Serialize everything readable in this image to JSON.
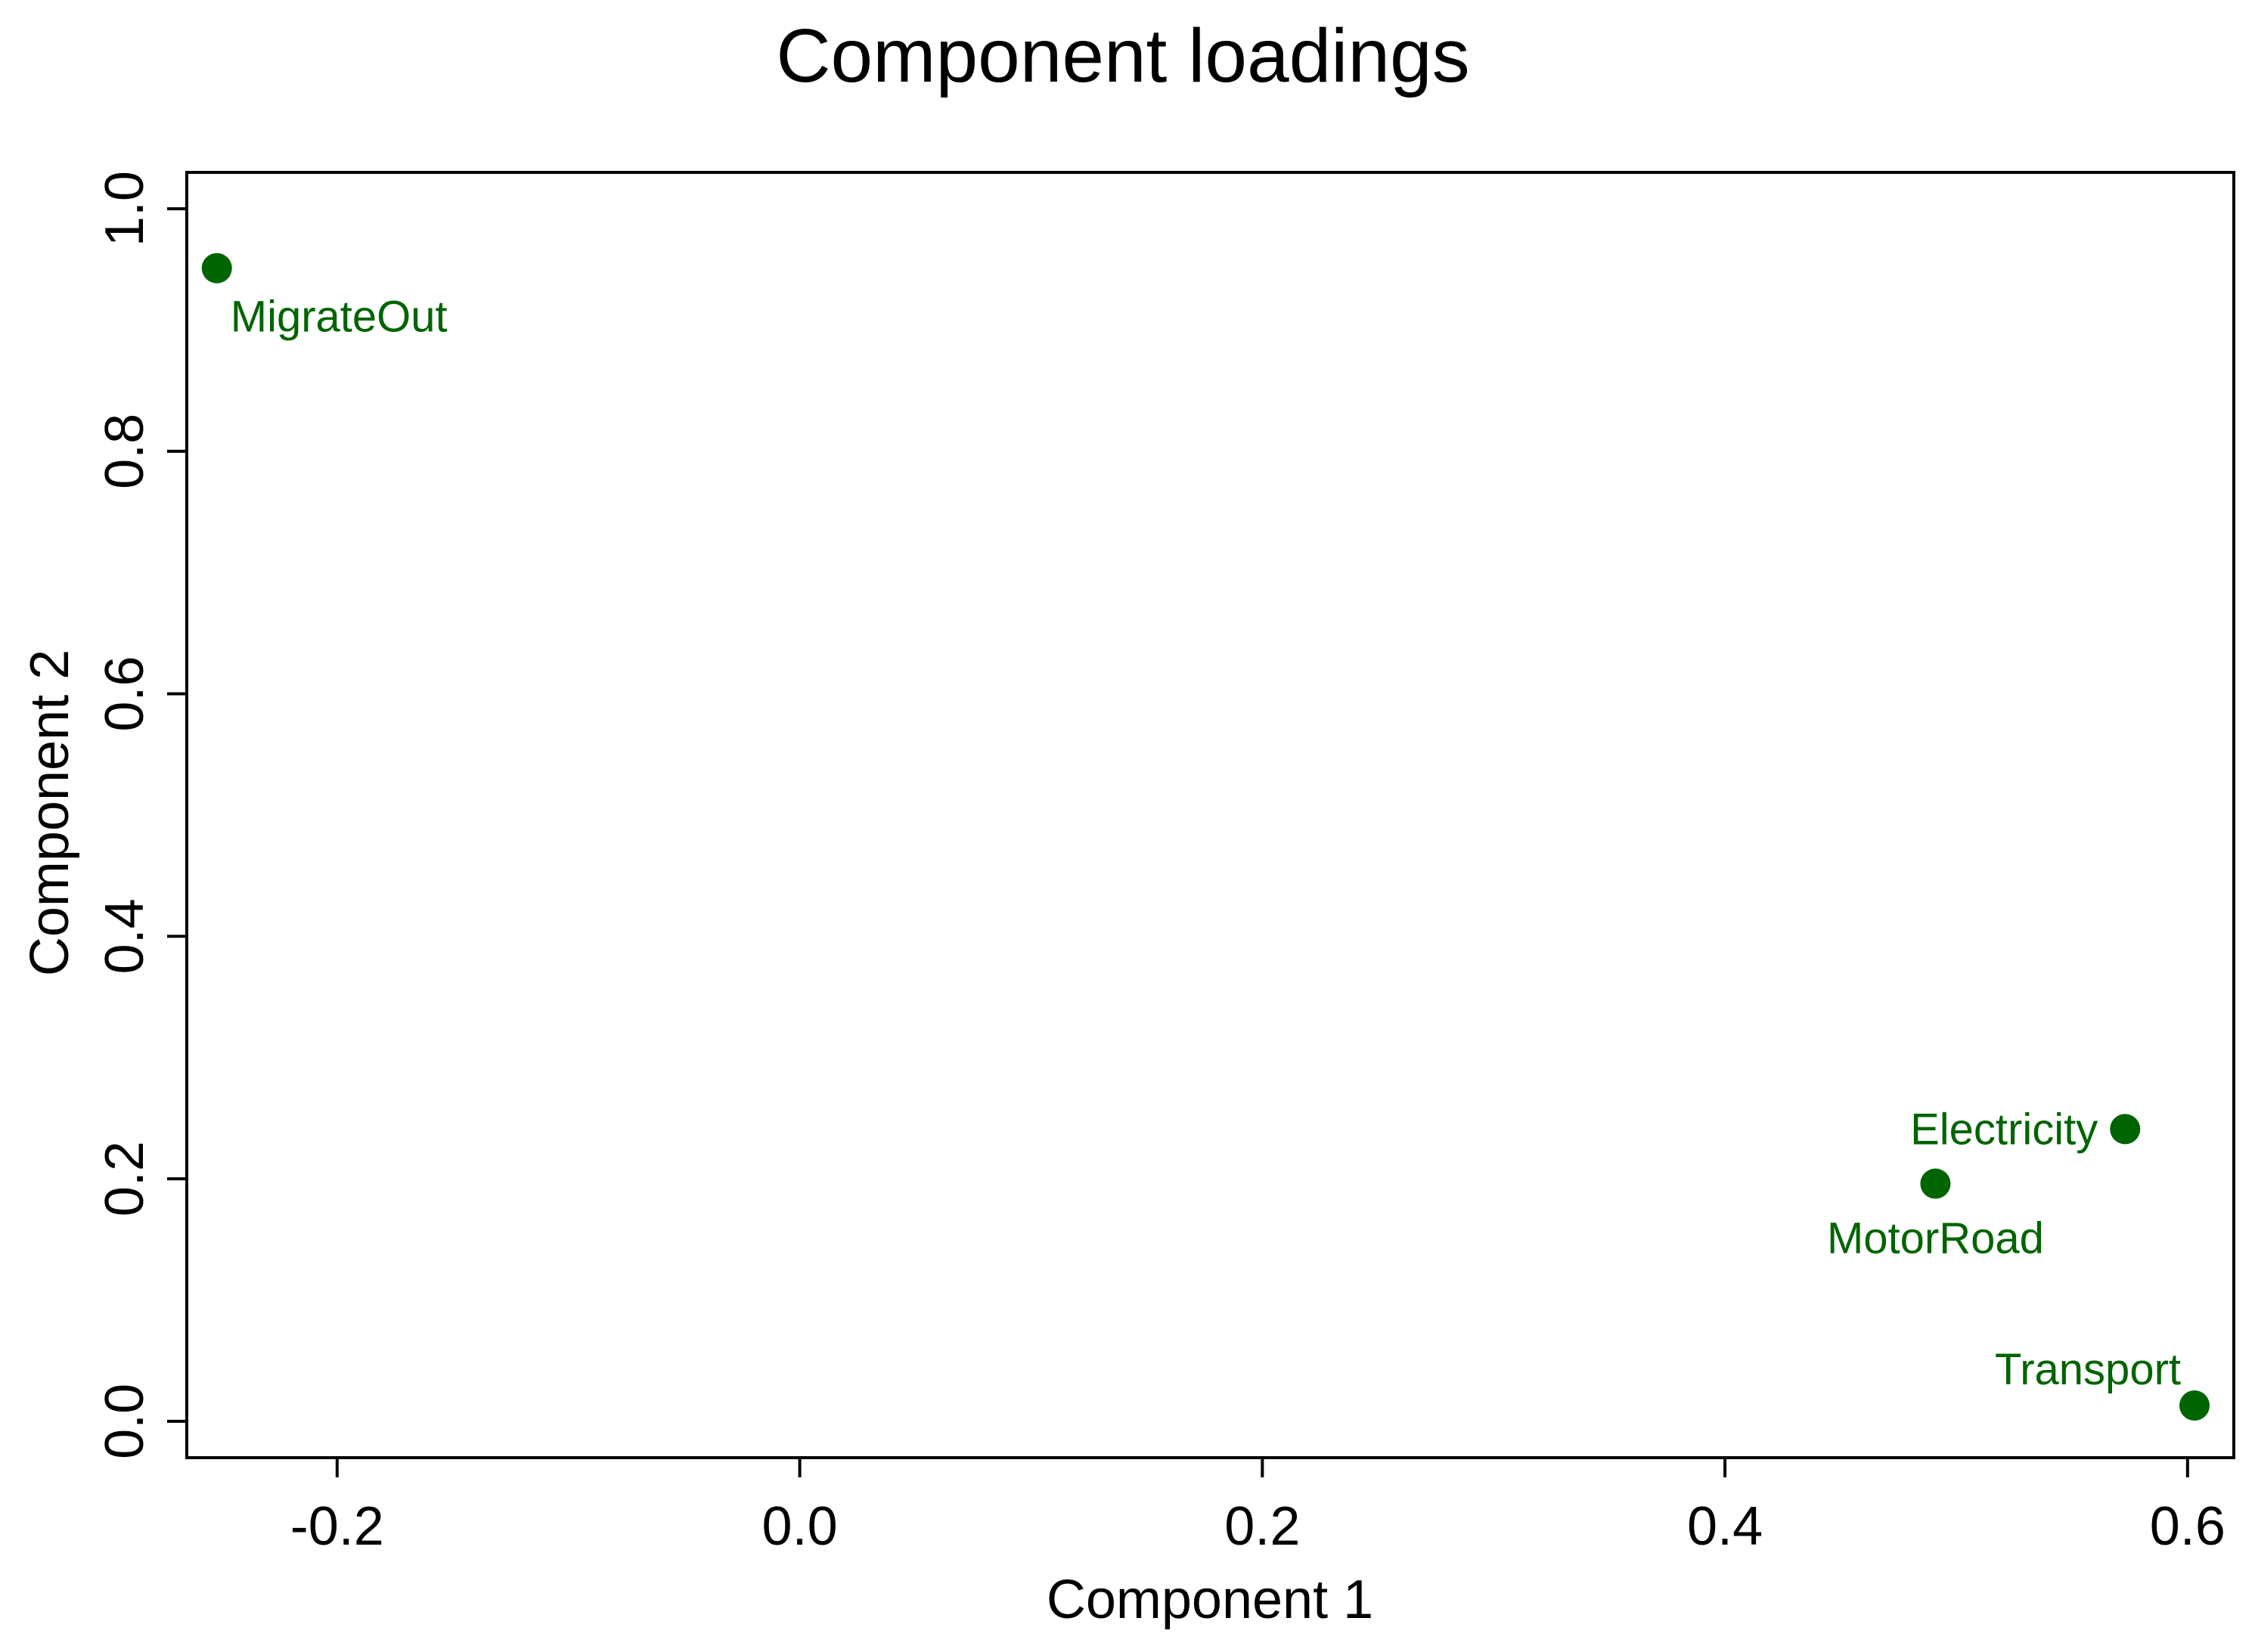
{
  "chart_data": {
    "type": "scatter",
    "title": "Component loadings",
    "xlabel": "Component 1",
    "ylabel": "Component 2",
    "xlim": [
      -0.265,
      0.62
    ],
    "ylim": [
      -0.03,
      1.03
    ],
    "xticks": [
      -0.2,
      0.0,
      0.2,
      0.4,
      0.6
    ],
    "xtick_labels": [
      "-0.2",
      "0.0",
      "0.2",
      "0.4",
      "0.6"
    ],
    "yticks": [
      0.0,
      0.2,
      0.4,
      0.6,
      0.8,
      1.0
    ],
    "ytick_labels": [
      "0.0",
      "0.2",
      "0.4",
      "0.6",
      "0.8",
      "1.0"
    ],
    "grid": false,
    "legend": "none",
    "point_color": "#006400",
    "points": [
      {
        "label": "MigrateOut",
        "x": -0.252,
        "y": 0.951,
        "label_side": "below-right"
      },
      {
        "label": "Electricity",
        "x": 0.573,
        "y": 0.241,
        "label_side": "left"
      },
      {
        "label": "MotorRoad",
        "x": 0.491,
        "y": 0.196,
        "label_side": "below"
      },
      {
        "label": "Transport",
        "x": 0.603,
        "y": 0.013,
        "label_side": "above-left"
      }
    ]
  }
}
